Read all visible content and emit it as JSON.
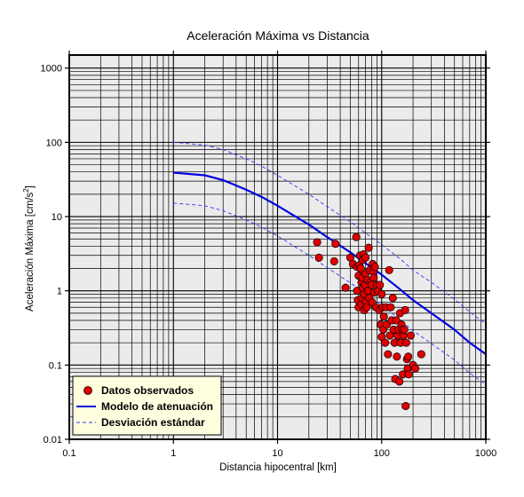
{
  "chart_data": {
    "type": "scatter",
    "title": "Aceleración Máxima vs Distancia",
    "xlabel": "Distancia hipocentral [km]",
    "ylabel_main": "Aceleración Máxima [cm/s",
    "ylabel_sup": "2",
    "ylabel_tail": "]",
    "xscale": "log",
    "yscale": "log",
    "xlim": [
      0.1,
      1000
    ],
    "ylim": [
      0.01,
      1500
    ],
    "grid": true,
    "legend_position": "bottom-left",
    "x_ticks": [
      0.1,
      1,
      10,
      100,
      1000
    ],
    "x_tick_labels": [
      "0.1",
      "1",
      "10",
      "100",
      "1000"
    ],
    "y_ticks": [
      0.01,
      0.1,
      1,
      10,
      100,
      1000
    ],
    "y_tick_labels": [
      "0.01",
      "0.1",
      "1",
      "10",
      "100",
      "1000"
    ],
    "colors": {
      "plot_bg": "#ebebeb",
      "grid": "#000000",
      "points": "#e00000",
      "model": "#0000e0",
      "deviation": "#3333ff",
      "legend_bg": "#ffffe0"
    },
    "series": [
      {
        "name": "Datos observados",
        "kind": "points",
        "points": [
          [
            24,
            4.5
          ],
          [
            25,
            2.8
          ],
          [
            35,
            2.5
          ],
          [
            36,
            4.3
          ],
          [
            45,
            1.1
          ],
          [
            50,
            2.8
          ],
          [
            53,
            2.3
          ],
          [
            57,
            5.3
          ],
          [
            58,
            2.1
          ],
          [
            58,
            1.0
          ],
          [
            59,
            0.75
          ],
          [
            60,
            1.6
          ],
          [
            60,
            0.6
          ],
          [
            61,
            2.2
          ],
          [
            62,
            3.0
          ],
          [
            63,
            2.0
          ],
          [
            64,
            1.3
          ],
          [
            64,
            0.65
          ],
          [
            65,
            1.5
          ],
          [
            65,
            0.8
          ],
          [
            66,
            2.6
          ],
          [
            66,
            1.1
          ],
          [
            67,
            3.1
          ],
          [
            68,
            0.9
          ],
          [
            68,
            0.55
          ],
          [
            69,
            1.2
          ],
          [
            70,
            2.8
          ],
          [
            70,
            1.7
          ],
          [
            71,
            0.7
          ],
          [
            72,
            0.6
          ],
          [
            73,
            1.4
          ],
          [
            74,
            1.0
          ],
          [
            75,
            3.8
          ],
          [
            76,
            0.8
          ],
          [
            77,
            1.9
          ],
          [
            78,
            1.3
          ],
          [
            80,
            1.2
          ],
          [
            81,
            0.7
          ],
          [
            82,
            2.3
          ],
          [
            83,
            1.8
          ],
          [
            84,
            1.5
          ],
          [
            85,
            0.95
          ],
          [
            86,
            2.1
          ],
          [
            88,
            0.6
          ],
          [
            90,
            1.2
          ],
          [
            92,
            1.0
          ],
          [
            95,
            0.55
          ],
          [
            96,
            1.2
          ],
          [
            98,
            0.35
          ],
          [
            100,
            0.9
          ],
          [
            100,
            0.24
          ],
          [
            102,
            0.6
          ],
          [
            104,
            0.3
          ],
          [
            105,
            0.45
          ],
          [
            108,
            0.2
          ],
          [
            110,
            0.6
          ],
          [
            112,
            0.35
          ],
          [
            115,
            0.14
          ],
          [
            118,
            1.9
          ],
          [
            120,
            0.25
          ],
          [
            122,
            0.6
          ],
          [
            125,
            0.4
          ],
          [
            128,
            0.8
          ],
          [
            130,
            0.3
          ],
          [
            133,
            0.2
          ],
          [
            135,
            0.065
          ],
          [
            138,
            0.4
          ],
          [
            140,
            0.13
          ],
          [
            142,
            0.25
          ],
          [
            145,
            0.3
          ],
          [
            148,
            0.06
          ],
          [
            150,
            0.5
          ],
          [
            152,
            0.2
          ],
          [
            155,
            0.35
          ],
          [
            158,
            0.3
          ],
          [
            160,
            0.075
          ],
          [
            162,
            0.25
          ],
          [
            165,
            0.3
          ],
          [
            168,
            0.55
          ],
          [
            170,
            0.028
          ],
          [
            172,
            0.2
          ],
          [
            175,
            0.12
          ],
          [
            178,
            0.09
          ],
          [
            180,
            0.13
          ],
          [
            182,
            0.075
          ],
          [
            190,
            0.25
          ],
          [
            200,
            0.1
          ],
          [
            210,
            0.09
          ],
          [
            240,
            0.14
          ]
        ]
      },
      {
        "name": "Modelo de atenuación",
        "kind": "line",
        "points": [
          [
            1,
            39
          ],
          [
            2,
            36
          ],
          [
            3,
            31
          ],
          [
            5,
            23
          ],
          [
            7,
            18.5
          ],
          [
            10,
            14
          ],
          [
            20,
            7.8
          ],
          [
            30,
            5.3
          ],
          [
            50,
            3.3
          ],
          [
            70,
            2.35
          ],
          [
            100,
            1.65
          ],
          [
            150,
            1.05
          ],
          [
            200,
            0.75
          ],
          [
            300,
            0.5
          ],
          [
            500,
            0.3
          ],
          [
            700,
            0.2
          ],
          [
            1000,
            0.14
          ]
        ]
      },
      {
        "name": "Desviación estándar",
        "kind": "dashed",
        "upper": [
          [
            1,
            100
          ],
          [
            2,
            92
          ],
          [
            3,
            80
          ],
          [
            5,
            60
          ],
          [
            7,
            48
          ],
          [
            10,
            36
          ],
          [
            20,
            20
          ],
          [
            30,
            13.6
          ],
          [
            50,
            8.5
          ],
          [
            70,
            6.0
          ],
          [
            100,
            4.2
          ],
          [
            150,
            2.7
          ],
          [
            200,
            1.9
          ],
          [
            300,
            1.3
          ],
          [
            500,
            0.77
          ],
          [
            700,
            0.52
          ],
          [
            1000,
            0.36
          ]
        ],
        "lower": [
          [
            1,
            15.2
          ],
          [
            2,
            14
          ],
          [
            3,
            12
          ],
          [
            5,
            9
          ],
          [
            7,
            7.2
          ],
          [
            10,
            5.5
          ],
          [
            20,
            3.0
          ],
          [
            30,
            2.05
          ],
          [
            50,
            1.28
          ],
          [
            70,
            0.92
          ],
          [
            100,
            0.64
          ],
          [
            150,
            0.41
          ],
          [
            200,
            0.29
          ],
          [
            300,
            0.195
          ],
          [
            500,
            0.117
          ],
          [
            700,
            0.078
          ],
          [
            1000,
            0.055
          ]
        ]
      }
    ]
  }
}
